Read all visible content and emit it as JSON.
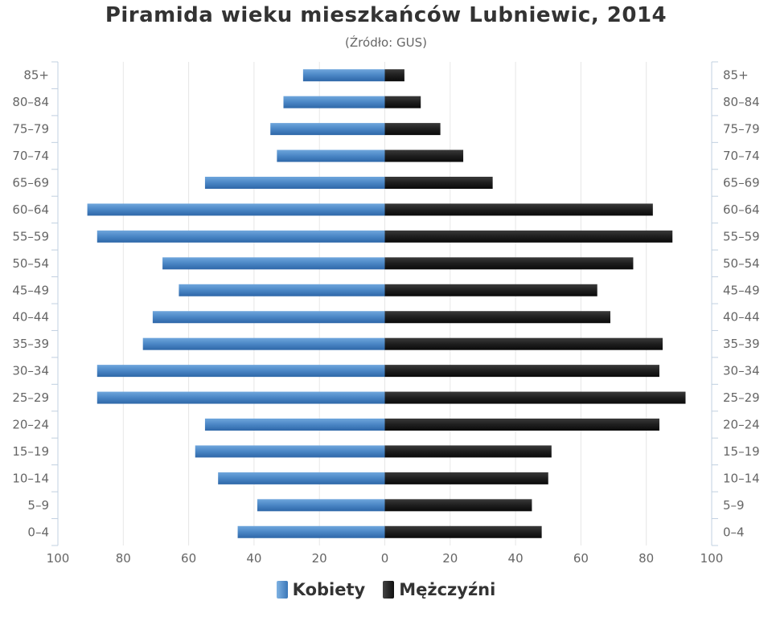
{
  "header": {
    "title": "Piramida wieku mieszkańców Lubniewic, 2014",
    "subtitle": "(Źródło: GUS)"
  },
  "legend": {
    "female_label": "Kobiety",
    "male_label": "Mężczyźni"
  },
  "colors": {
    "female": "#4a86c5",
    "male": "#1e1e1e",
    "grid": "#e6e6e6",
    "axis": "#c0d0e0"
  },
  "chart_data": {
    "type": "bar",
    "orientation": "horizontal-pyramid",
    "title": "Piramida wieku mieszkańców Lubniewic, 2014",
    "subtitle": "(Źródło: GUS)",
    "categories": [
      "0–4",
      "5–9",
      "10–14",
      "15–19",
      "20–24",
      "25–29",
      "30–34",
      "35–39",
      "40–44",
      "45–49",
      "50–54",
      "55–59",
      "60–64",
      "65–69",
      "70–74",
      "75–79",
      "80–84",
      "85+"
    ],
    "series": [
      {
        "name": "Kobiety",
        "side": "left",
        "values": [
          45,
          39,
          51,
          58,
          55,
          88,
          88,
          74,
          71,
          63,
          68,
          88,
          91,
          55,
          33,
          35,
          31,
          25
        ]
      },
      {
        "name": "Mężczyźni",
        "side": "right",
        "values": [
          48,
          45,
          50,
          51,
          84,
          92,
          84,
          85,
          69,
          65,
          76,
          88,
          82,
          33,
          24,
          17,
          11,
          6
        ]
      }
    ],
    "xlim": [
      -100,
      100
    ],
    "x_tick_labels": [
      "100",
      "80",
      "60",
      "40",
      "20",
      "0",
      "20",
      "40",
      "60",
      "80",
      "100"
    ],
    "grid": true,
    "legend_position": "bottom-center"
  }
}
